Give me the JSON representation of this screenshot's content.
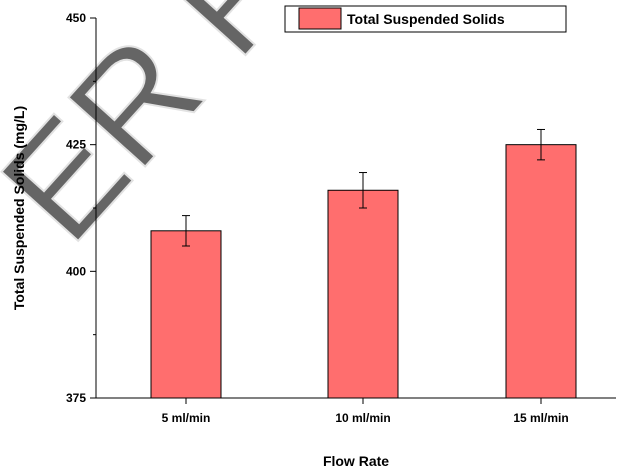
{
  "chart_data": {
    "type": "bar",
    "categories": [
      "5 ml/min",
      "10  ml/min",
      "15  ml/min"
    ],
    "series": [
      {
        "name": "Total Suspended Solids",
        "values": [
          408,
          416,
          425
        ],
        "errors": [
          3,
          3.5,
          3
        ],
        "color": "#ff6e6e"
      }
    ],
    "xlabel": "Flow Rate",
    "ylabel": "Total Suspended Solids (mg/L)",
    "ylim": [
      375,
      450
    ],
    "yticks": [
      375,
      400,
      425,
      450
    ],
    "ytick_labels": [
      "375",
      "400",
      "425",
      "450"
    ],
    "grid": false,
    "legend_position": "top-right",
    "watermark": "PEER REVIEW"
  }
}
